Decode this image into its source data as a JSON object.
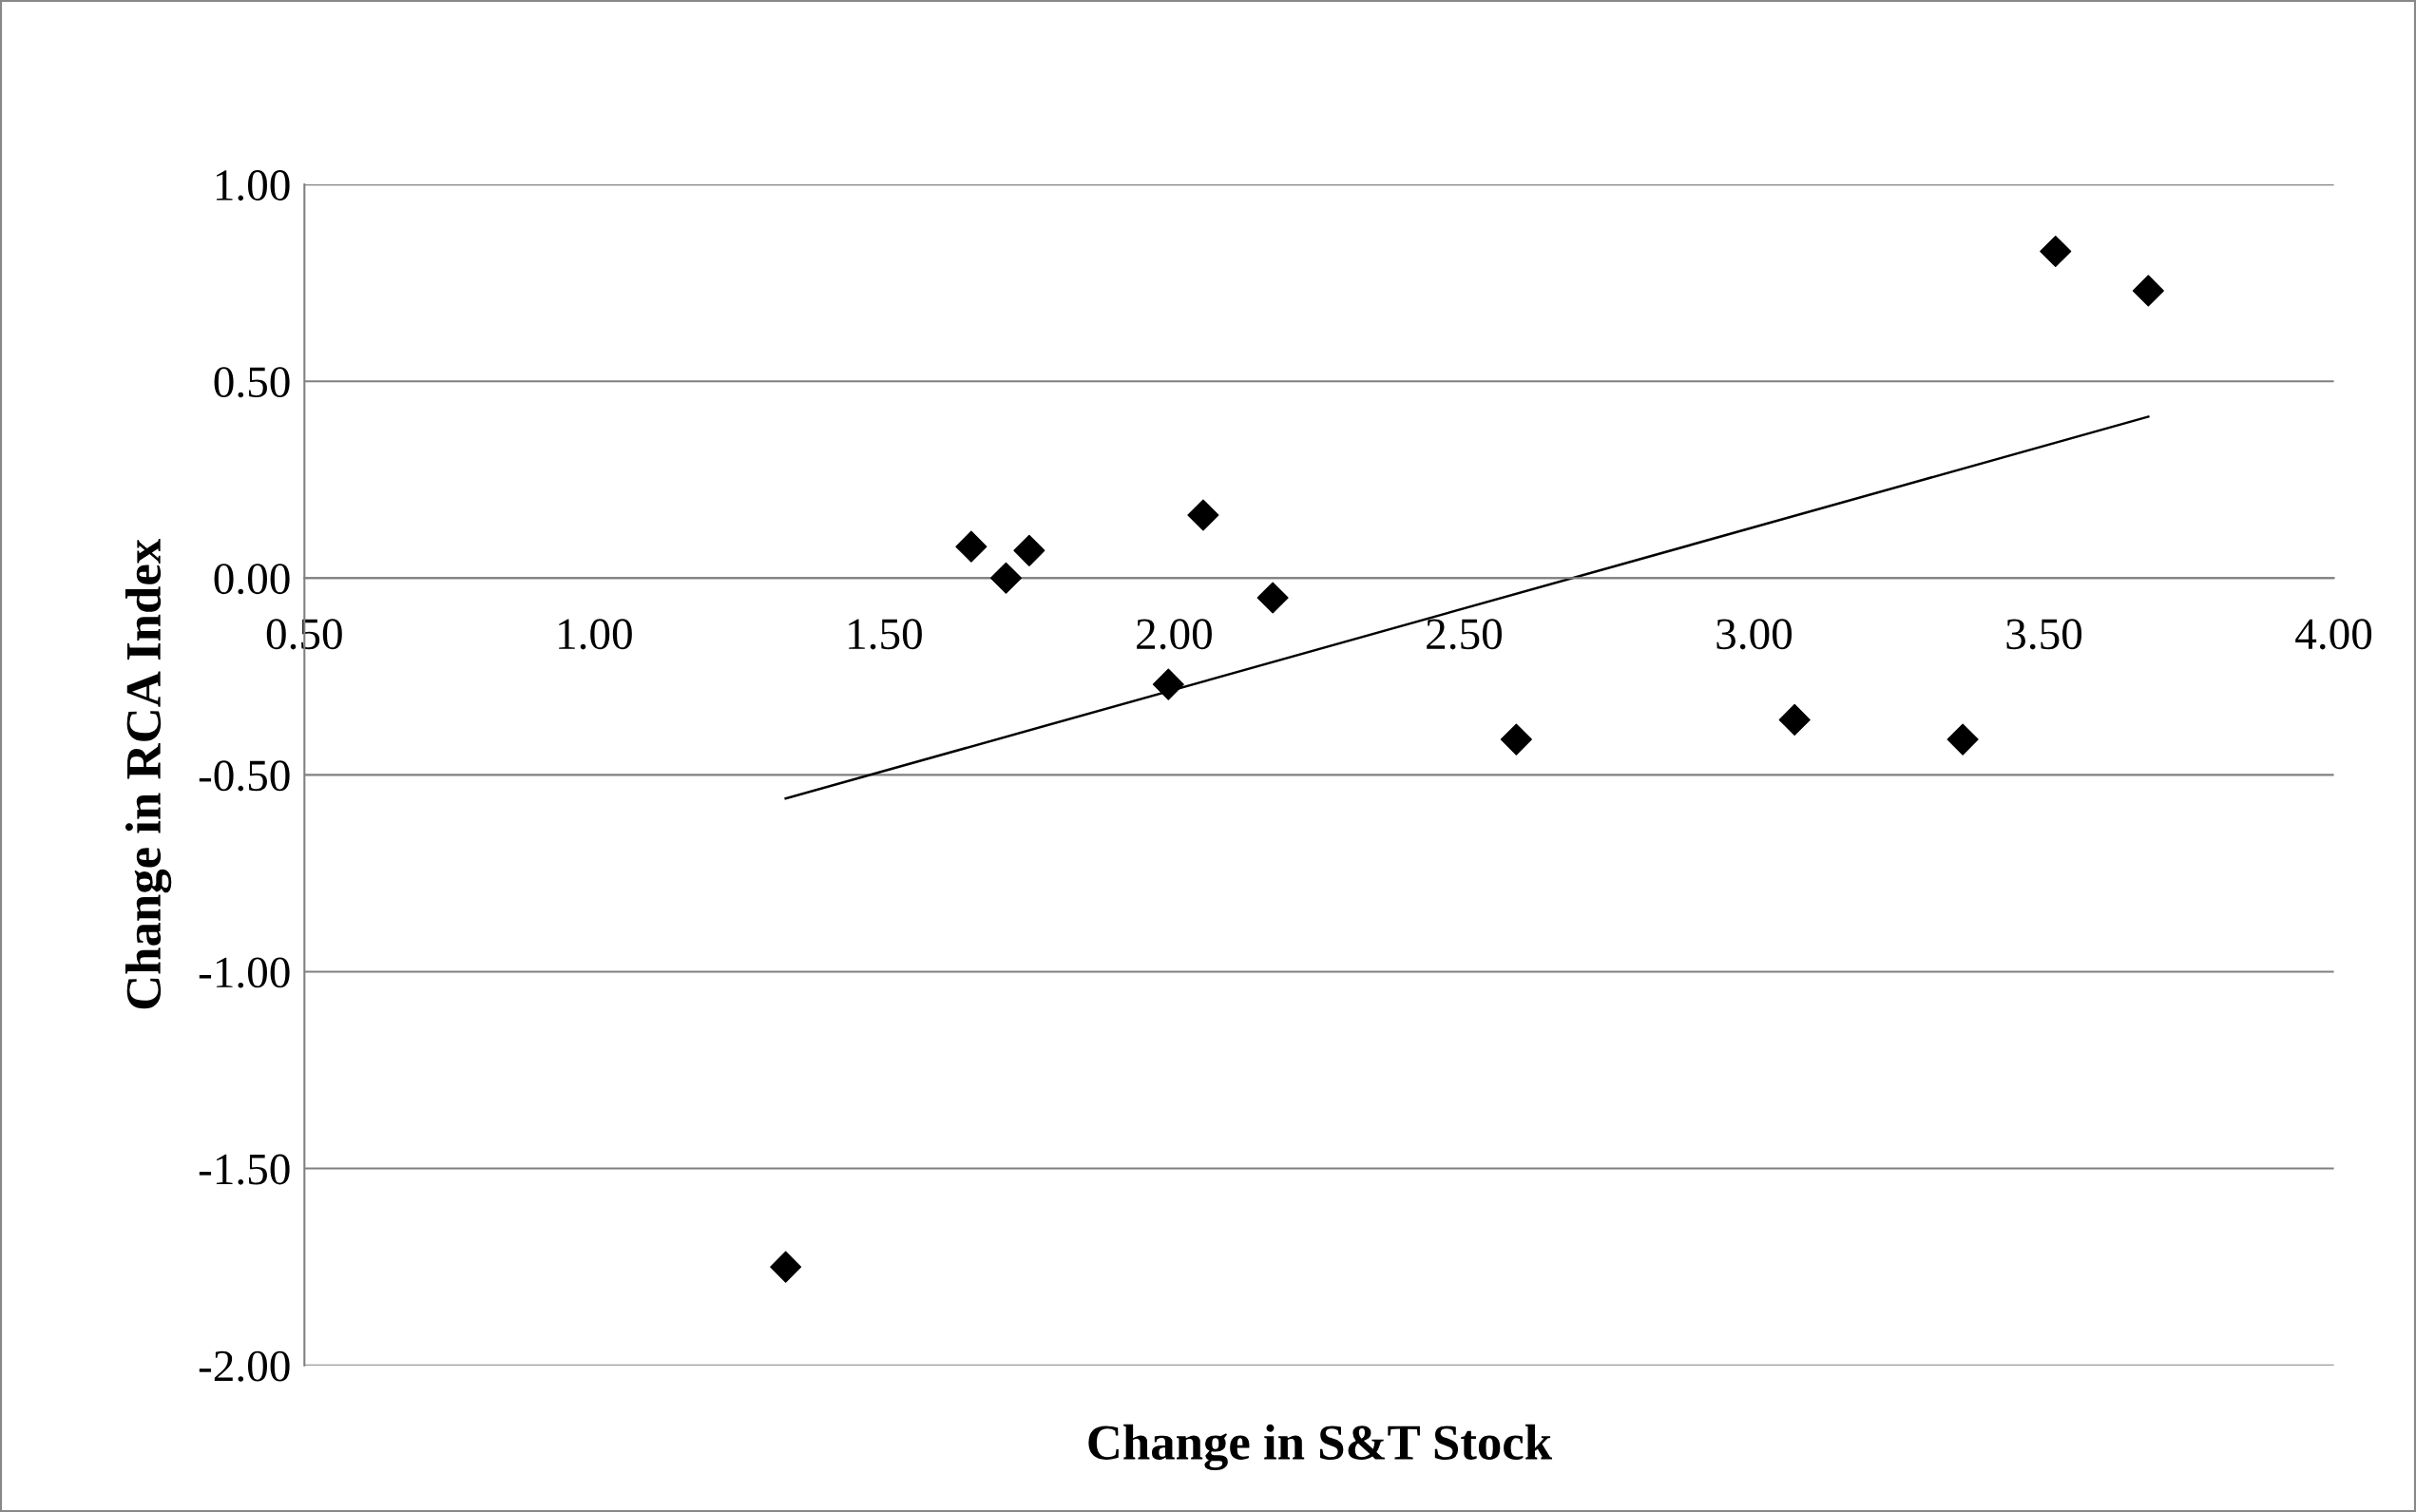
{
  "chart_data": {
    "type": "scatter",
    "xlabel": "Change in S&T Stock",
    "ylabel": "Change in RCA Index",
    "xlim": [
      0.5,
      4.0
    ],
    "xticks": [
      {
        "value": 0.5,
        "label": "0.50"
      },
      {
        "value": 1.0,
        "label": "1.00"
      },
      {
        "value": 1.5,
        "label": "1.50"
      },
      {
        "value": 2.0,
        "label": "2.00"
      },
      {
        "value": 2.5,
        "label": "2.50"
      },
      {
        "value": 3.0,
        "label": "3.00"
      },
      {
        "value": 3.5,
        "label": "3.50"
      },
      {
        "value": 4.0,
        "label": "4.00"
      }
    ],
    "ylim": [
      -2.0,
      1.0
    ],
    "yticks": [
      {
        "value": -2.0,
        "label": "-2.00"
      },
      {
        "value": -1.5,
        "label": "-1.50"
      },
      {
        "value": -1.0,
        "label": "-1.00"
      },
      {
        "value": -0.5,
        "label": "-0.50"
      },
      {
        "value": 0.0,
        "label": "0.00"
      },
      {
        "value": 0.5,
        "label": "0.50"
      },
      {
        "value": 1.0,
        "label": "1.00"
      }
    ],
    "grid": "y",
    "legend": false,
    "series": [
      {
        "color": "#000000",
        "marker": "diamond",
        "x": [
          1.33,
          1.65,
          1.71,
          1.75,
          1.99,
          2.05,
          2.17,
          2.59,
          3.07,
          3.36,
          3.52,
          3.68
        ],
        "values": [
          -1.75,
          0.08,
          0.0,
          0.07,
          -0.27,
          0.16,
          -0.05,
          -0.41,
          -0.36,
          -0.41,
          0.83,
          0.73
        ]
      },
      {
        "type": "line",
        "color": "#000000",
        "marker": "none",
        "line_style": "solid",
        "x": [
          1.33,
          3.68
        ],
        "values": [
          -0.56,
          0.41
        ]
      }
    ]
  }
}
